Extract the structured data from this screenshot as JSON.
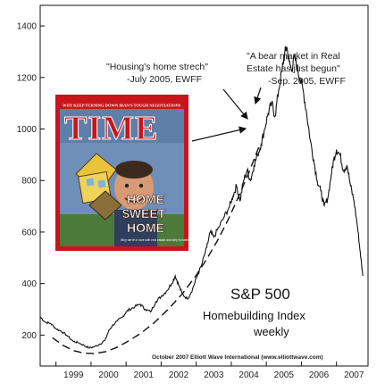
{
  "chart_data": {
    "type": "line",
    "title": "S&P 500",
    "subtitle_lines": [
      "Homebuilding Index",
      "weekly"
    ],
    "credit": "October 2007 Elliott Wave International (www.elliottwave.com)",
    "x_ticks": [
      "1999",
      "2000",
      "2001",
      "2002",
      "2003",
      "2004",
      "2005",
      "2006",
      "2007"
    ],
    "y_ticks": [
      200,
      400,
      600,
      800,
      1000,
      1200,
      1400
    ],
    "xlim": [
      1998.55,
      2007.9
    ],
    "ylim": [
      80,
      1480
    ],
    "grid": false,
    "series": [
      {
        "x": [
          1998.55,
          1998.7,
          1998.85,
          1999.0,
          1999.15,
          1999.3,
          1999.5,
          1999.65,
          1999.8,
          1999.95,
          2000.1,
          2000.25,
          2000.4,
          2000.5,
          2000.6,
          2000.75,
          2000.9,
          2001.0,
          2001.1,
          2001.25,
          2001.4,
          2001.55,
          2001.7,
          2001.85,
          2002.0,
          2002.15,
          2002.3,
          2002.4,
          2002.5,
          2002.6,
          2002.75,
          2002.9,
          2003.0,
          2003.15,
          2003.3,
          2003.4,
          2003.5,
          2003.65,
          2003.8,
          2003.95,
          2004.05,
          2004.15,
          2004.25,
          2004.35,
          2004.45,
          2004.55,
          2004.65,
          2004.75,
          2004.85,
          2004.95,
          2005.05,
          2005.15,
          2005.25,
          2005.35,
          2005.45,
          2005.52,
          2005.58,
          2005.65,
          2005.72,
          2005.8,
          2005.88,
          2005.95,
          2006.05,
          2006.15,
          2006.25,
          2006.35,
          2006.45,
          2006.55,
          2006.65,
          2006.75,
          2006.85,
          2006.92,
          2007.0,
          2007.1,
          2007.2,
          2007.3,
          2007.4,
          2007.5,
          2007.6,
          2007.68,
          2007.75
        ],
        "y": [
          270,
          250,
          245,
          225,
          215,
          200,
          175,
          170,
          160,
          150,
          155,
          165,
          180,
          215,
          235,
          255,
          270,
          290,
          300,
          310,
          320,
          300,
          290,
          330,
          350,
          370,
          400,
          430,
          395,
          360,
          340,
          380,
          420,
          470,
          540,
          600,
          580,
          620,
          660,
          700,
          740,
          780,
          720,
          800,
          840,
          800,
          860,
          900,
          940,
          1000,
          1060,
          1100,
          1050,
          1150,
          1230,
          1290,
          1320,
          1260,
          1230,
          1280,
          1240,
          1200,
          1150,
          1060,
          960,
          880,
          800,
          760,
          700,
          730,
          820,
          880,
          920,
          900,
          840,
          860,
          780,
          720,
          620,
          520,
          430
        ]
      },
      {
        "style": "dashed",
        "x": [
          1998.9,
          1999.2,
          1999.5,
          1999.8,
          2000.1,
          2000.4,
          2000.7,
          2001.0,
          2001.4,
          2001.8,
          2002.2,
          2002.6,
          2003.0,
          2003.3,
          2003.6,
          2003.9,
          2004.2,
          2004.5,
          2004.8
        ],
        "y": [
          190,
          160,
          140,
          130,
          128,
          135,
          150,
          172,
          205,
          248,
          300,
          360,
          432,
          495,
          565,
          645,
          735,
          830,
          935
        ]
      }
    ],
    "annotations": [
      {
        "lines": [
          "\"Housing's home strech\"",
          "-July 2005, EWFF"
        ]
      },
      {
        "lines": [
          "\"A bear market in Real",
          "Estate has just begun\"",
          "-Sep. 2005, EWFF"
        ]
      }
    ]
  },
  "magazine_cover": {
    "masthead": "TIME",
    "top_banner": "WHY KEEP TURNING DOWN     IRAN'S TOUGH NEGOTIATIONS",
    "headline_1": "HOME",
    "headline_2": "$WEET",
    "headline_3": "HOME",
    "caption": "Why we're in love with real estate and why it matters"
  }
}
